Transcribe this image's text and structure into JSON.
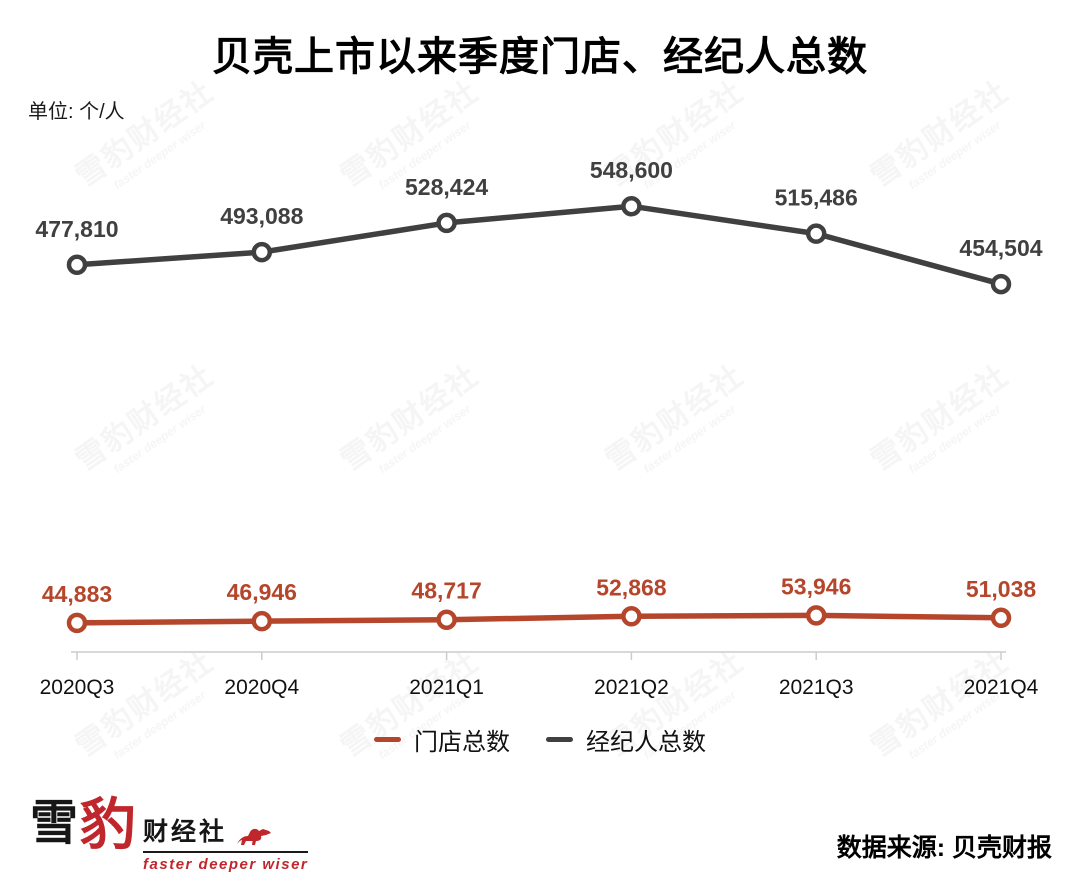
{
  "chart_data": {
    "type": "line",
    "title": "贝壳上市以来季度门店、经纪人总数",
    "unit_label": "单位: 个/人",
    "categories": [
      "2020Q3",
      "2020Q4",
      "2021Q1",
      "2021Q2",
      "2021Q3",
      "2021Q4"
    ],
    "series": [
      {
        "name": "门店总数",
        "color": "#b5462b",
        "values": [
          44883,
          46946,
          48717,
          52868,
          53946,
          51038
        ],
        "labels": [
          "44,883",
          "46,946",
          "48,717",
          "52,868",
          "53,946",
          "51,038"
        ]
      },
      {
        "name": "经纪人总数",
        "color": "#404040",
        "values": [
          477810,
          493088,
          528424,
          548600,
          515486,
          454504
        ],
        "labels": [
          "477,810",
          "493,088",
          "528,424",
          "548,600",
          "515,486",
          "454,504"
        ]
      }
    ],
    "ylim": [
      0,
      600000
    ],
    "grid": false,
    "legend_position": "bottom",
    "marker": "open-circle"
  },
  "legend": {
    "items": [
      {
        "label": "门店总数",
        "color": "#b5462b"
      },
      {
        "label": "经纪人总数",
        "color": "#404040"
      }
    ]
  },
  "watermark": {
    "text": "雪豹财经社",
    "tagline": "faster deeper wiser"
  },
  "footer": {
    "logo": {
      "char_1": "雪",
      "char_2": "豹",
      "suffix": "财经社",
      "tagline": "faster deeper wiser"
    },
    "source": "数据来源: 贝壳财报"
  },
  "colors": {
    "accent_red": "#c0272d",
    "series_stores": "#b5462b",
    "series_agents": "#404040",
    "axis": "#cccccc"
  }
}
